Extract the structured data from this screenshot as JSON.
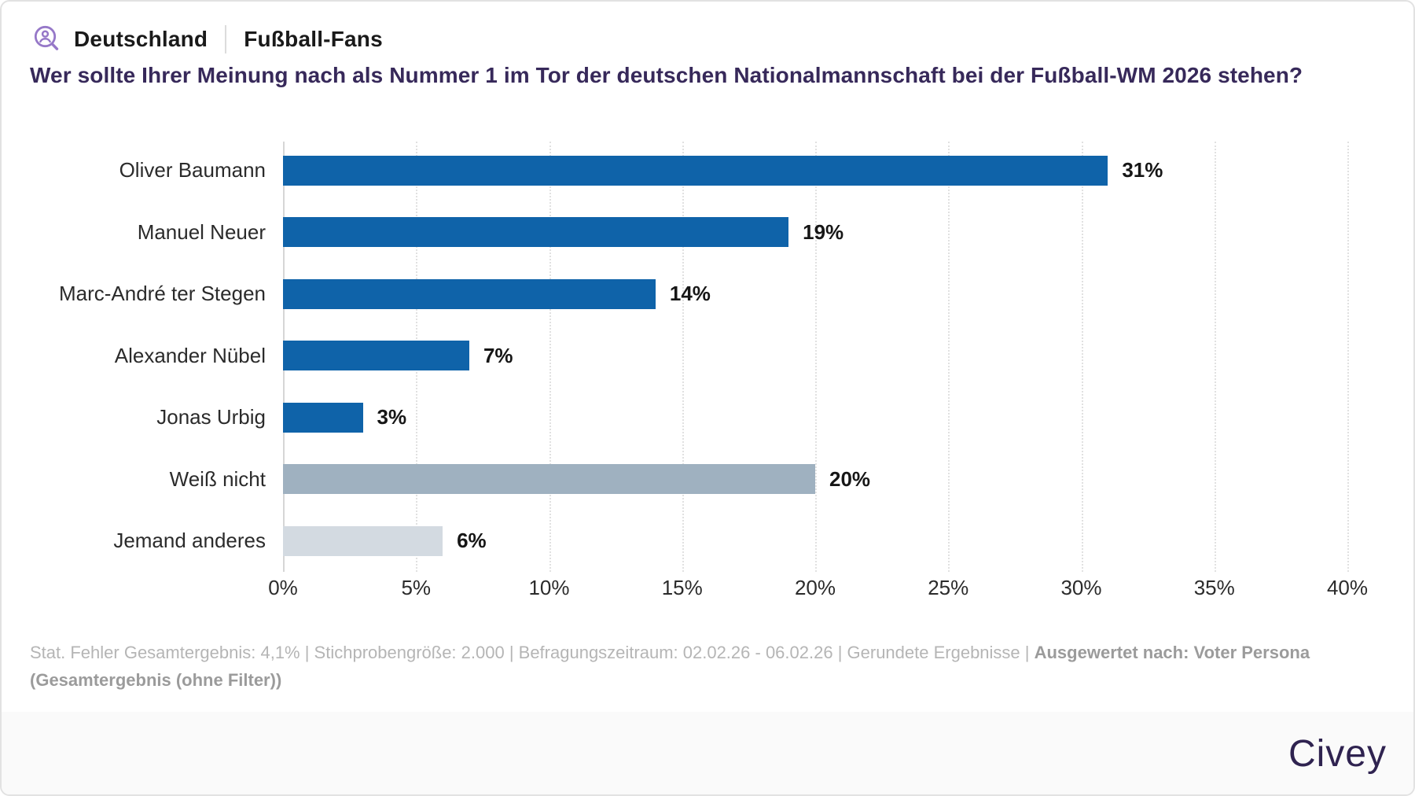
{
  "header": {
    "icon_name": "persona-search-icon",
    "region_label": "Deutschland",
    "group_label": "Fußball-Fans"
  },
  "question": {
    "title": "Wer sollte Ihrer Meinung nach als Nummer 1 im Tor der deutschen Nationalmannschaft bei der Fußball-WM 2026 stehen?"
  },
  "chart_data": {
    "type": "bar",
    "orientation": "horizontal",
    "categories": [
      "Oliver Baumann",
      "Manuel Neuer",
      "Marc-André ter Stegen",
      "Alexander Nübel",
      "Jonas Urbig",
      "Weiß nicht",
      "Jemand anderes"
    ],
    "values": [
      31,
      19,
      14,
      7,
      3,
      20,
      6
    ],
    "value_labels": [
      "31%",
      "19%",
      "14%",
      "7%",
      "3%",
      "20%",
      "6%"
    ],
    "bar_colors": [
      "#0f63a9",
      "#0f63a9",
      "#0f63a9",
      "#0f63a9",
      "#0f63a9",
      "#9fb1c0",
      "#d3dae1"
    ],
    "x_tick_values": [
      0,
      5,
      10,
      15,
      20,
      25,
      30,
      35,
      40
    ],
    "x_tick_labels": [
      "0%",
      "5%",
      "10%",
      "15%",
      "20%",
      "25%",
      "30%",
      "35%",
      "40%"
    ],
    "xlim": [
      0,
      41
    ],
    "grid": "vertical-dotted",
    "legend": "none"
  },
  "footer": {
    "meta_regular": "Stat. Fehler Gesamtergebnis: 4,1% | Stichprobengröße: 2.000 | Befragungszeitraum: 02.02.26 - 06.02.26 | Gerundete Ergebnisse | ",
    "meta_bold": "Ausgewertet nach: Voter Persona (Gesamtergebnis (ohne Filter))"
  },
  "branding": {
    "logo_text": "Civey"
  },
  "colors": {
    "bar_blue": "#0f63a9",
    "bar_gray": "#9fb1c0",
    "bar_light_gray": "#d3dae1",
    "title_purple": "#37295a",
    "logo_purple": "#2f2350",
    "icon_purple": "#9678c8",
    "grid_line": "#e1e1e1",
    "footer_gray": "#b5b5b5"
  }
}
